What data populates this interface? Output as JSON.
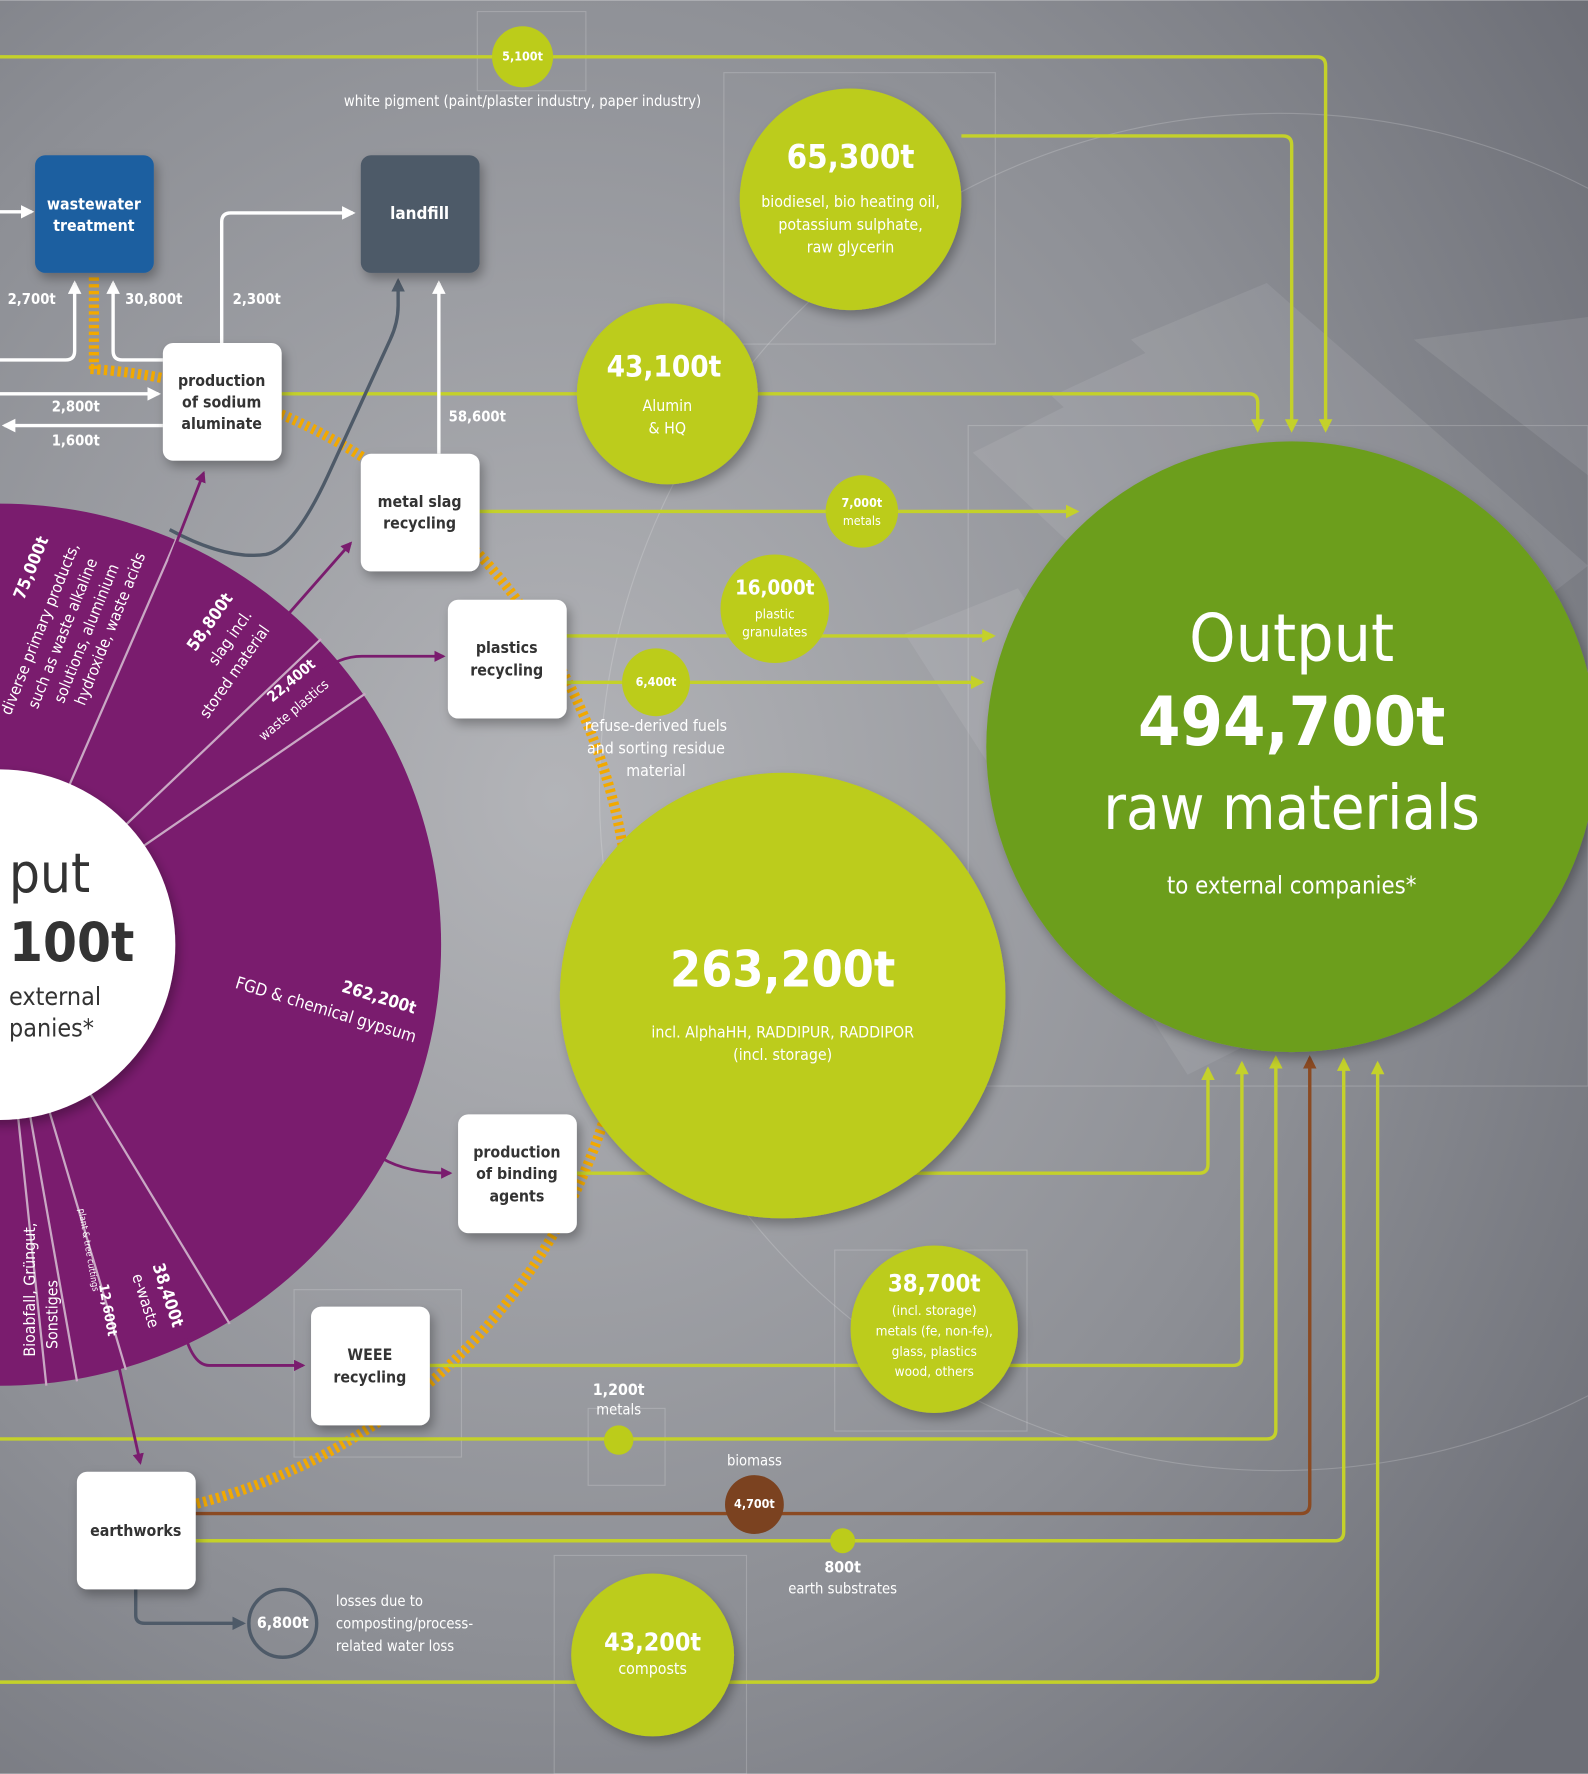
{
  "input": {
    "lines": [
      "put",
      "100t",
      "external",
      "panies*"
    ]
  },
  "input_segments": [
    {
      "amount": "75,000t",
      "lines": [
        "diverse primary products,",
        "such as waste alkaline",
        "solutions, aluminium",
        "hydroxide, waste acids"
      ]
    },
    {
      "amount": "58,800t",
      "lines": [
        "slag incl.",
        "stored material"
      ]
    },
    {
      "amount": "22,400t",
      "lines": [
        "waste plastics"
      ]
    },
    {
      "amount": "262,200t",
      "lines": [
        "FGD & chemical gypsum"
      ]
    },
    {
      "amount": "38,400t",
      "lines": [
        "e-waste"
      ]
    },
    {
      "amount": "12,600t",
      "lines": [
        "plant & tree cuttings"
      ]
    },
    {
      "lines": [
        "Bioabfall, Grüngut,",
        "Sonstiges"
      ]
    }
  ],
  "output": {
    "title": "Output",
    "amount": "494,700t",
    "label": "raw materials",
    "note": "to external companies*"
  },
  "processes": [
    {
      "lines": [
        "wastewater",
        "treatment"
      ]
    },
    {
      "lines": [
        "landfill"
      ]
    },
    {
      "lines": [
        "production",
        "of sodium",
        "aluminate"
      ]
    },
    {
      "lines": [
        "metal slag",
        "recycling"
      ]
    },
    {
      "lines": [
        "plastics",
        "recycling"
      ]
    },
    {
      "lines": [
        "production",
        "of binding",
        "agents"
      ]
    },
    {
      "lines": [
        "WEEE",
        "recycling"
      ]
    },
    {
      "lines": [
        "earthworks"
      ]
    }
  ],
  "flows": [
    "2,700t",
    "30,800t",
    "2,300t",
    "2,800t",
    "1,600t",
    "58,600t"
  ],
  "products": [
    {
      "amount": "5,100t",
      "lines": [
        "white pigment (paint/plaster industry, paper industry)"
      ]
    },
    {
      "amount": "65,300t",
      "lines": [
        "biodiesel, bio heating oil,",
        "potassium sulphate,",
        "raw glycerin"
      ]
    },
    {
      "amount": "43,100t",
      "lines": [
        "Alumin",
        "& HQ"
      ]
    },
    {
      "amount": "7,000t",
      "lines": [
        "metals"
      ]
    },
    {
      "amount": "16,000t",
      "lines": [
        "plastic",
        "granulates"
      ]
    },
    {
      "amount": "6,400t",
      "lines": [
        "refuse-derived fuels",
        "and sorting residue",
        "material"
      ]
    },
    {
      "amount": "263,200t",
      "lines": [
        "incl. AlphaHH, RADDIPUR, RADDIPOR",
        "(incl. storage)"
      ]
    },
    {
      "amount": "38,700t",
      "lines": [
        "(incl. storage)",
        "metals (fe, non-fe),",
        "glass, plastics",
        "wood, others"
      ]
    },
    {
      "amount": "1,200t",
      "lines": [
        "metals"
      ]
    },
    {
      "amount": "4,700t",
      "lines": [
        "biomass"
      ]
    },
    {
      "amount": "800t",
      "lines": [
        "earth substrates"
      ]
    },
    {
      "amount": "43,200t",
      "lines": [
        "composts"
      ]
    },
    {
      "amount": "6,800t",
      "lines": [
        "losses due to",
        "composting/process-",
        "related water loss"
      ]
    }
  ]
}
